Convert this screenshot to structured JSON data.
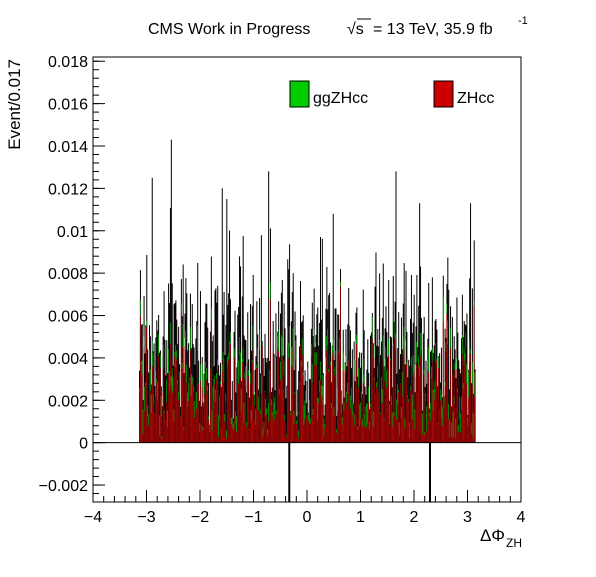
{
  "header": {
    "title_left": "CMS Work in Progress",
    "sqrt_symbol": "√s",
    "title_right": "= 13 TeV, 35.9 fb",
    "superscript": "-1"
  },
  "chart_data": {
    "type": "bar",
    "xlabel_main": "ΔΦ",
    "xlabel_sub": "ZH",
    "ylabel": "Event/0.017",
    "xlim": [
      -4,
      4
    ],
    "ylim": [
      -0.0028,
      0.0182
    ],
    "x_ticks": [
      -4,
      -3,
      -2,
      -1,
      0,
      1,
      2,
      3,
      4
    ],
    "x_tick_labels": [
      "−4",
      "−3",
      "−2",
      "−1",
      "0",
      "1",
      "2",
      "3",
      "4"
    ],
    "y_ticks": [
      -0.002,
      0,
      0.002,
      0.004,
      0.006,
      0.008,
      0.01,
      0.012,
      0.014,
      0.016,
      0.018
    ],
    "y_tick_labels": [
      "−0.002",
      "0",
      "0.002",
      "0.004",
      "0.006",
      "0.008",
      "0.01",
      "0.012",
      "0.014",
      "0.016",
      "0.018"
    ],
    "grid": false,
    "legend_position": "top-right",
    "bin_width": 0.017,
    "x_range_filled": [
      -3.14,
      3.14
    ],
    "series": [
      {
        "name": "ggZHcc",
        "color": "#00cc00"
      },
      {
        "name": "ZHcc",
        "color": "#cc0000"
      }
    ],
    "notable_spikes": [
      {
        "x": -2.9,
        "y": 0.0125
      },
      {
        "x": -2.55,
        "y": 0.0143
      },
      {
        "x": -1.6,
        "y": 0.012
      },
      {
        "x": -1.5,
        "y": 0.0115
      },
      {
        "x": -0.72,
        "y": 0.0128
      },
      {
        "x": 1.66,
        "y": 0.0128
      },
      {
        "x": 2.1,
        "y": 0.0113
      },
      {
        "x": 3.05,
        "y": 0.0113
      },
      {
        "x": 0.48,
        "y": 0.0108
      },
      {
        "x": -0.35,
        "y": -0.0028
      },
      {
        "x": 2.28,
        "y": -0.0028
      }
    ]
  }
}
